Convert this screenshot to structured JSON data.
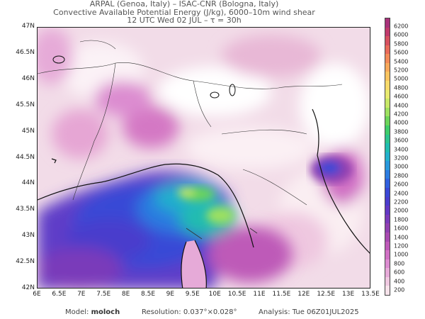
{
  "title": {
    "line1": "ARPAL (Genoa, Italy)  –  ISAC-CNR (Bologna, Italy)",
    "line2": "Convective Available Potential Energy (J/kg), 6000–10m wind shear",
    "line3": "12 UTC Wed 02 JUL  –  τ = 30h"
  },
  "axes": {
    "lat_labels": [
      "47N",
      "46.5N",
      "46N",
      "45.5N",
      "45N",
      "44.5N",
      "44N",
      "43.5N",
      "43N",
      "42.5N",
      "42N"
    ],
    "lon_labels": [
      "6E",
      "6.5E",
      "7E",
      "7.5E",
      "8E",
      "8.5E",
      "9E",
      "9.5E",
      "10E",
      "10.5E",
      "11E",
      "11.5E",
      "12E",
      "12.5E",
      "13E",
      "13.5E"
    ]
  },
  "colorbar": {
    "levels": [
      "6200",
      "6000",
      "5800",
      "5600",
      "5400",
      "5200",
      "5000",
      "4800",
      "4600",
      "4400",
      "4200",
      "4000",
      "3800",
      "3600",
      "3400",
      "3200",
      "3000",
      "2800",
      "2600",
      "2400",
      "2200",
      "2000",
      "1800",
      "1600",
      "1400",
      "1200",
      "1000",
      "800",
      "600",
      "400",
      "200"
    ],
    "colors": [
      "#a8327a",
      "#c03a6c",
      "#d65060",
      "#e86a5a",
      "#f28a58",
      "#f6a85a",
      "#f9c460",
      "#f6da6a",
      "#e8ea70",
      "#c8e868",
      "#9ee060",
      "#6cd45a",
      "#3ecc6a",
      "#2cc48e",
      "#20bcb0",
      "#22b0cc",
      "#2898dc",
      "#2c7ce0",
      "#3060de",
      "#3a48d6",
      "#4a3ccc",
      "#6238c4",
      "#7a3aba",
      "#9040b0",
      "#a84ab0",
      "#be5ab8",
      "#d070c4",
      "#dc8cd0",
      "#e6aad8",
      "#efc8e0",
      "#f6e2ea"
    ]
  },
  "footer": {
    "model_label": "Model:",
    "model_value": "moloch",
    "resolution_label": "Resolution:",
    "resolution_value": "0.037°×0.028°",
    "analysis_label": "Analysis:",
    "analysis_value": "Tue 06Z01JUL2025"
  }
}
